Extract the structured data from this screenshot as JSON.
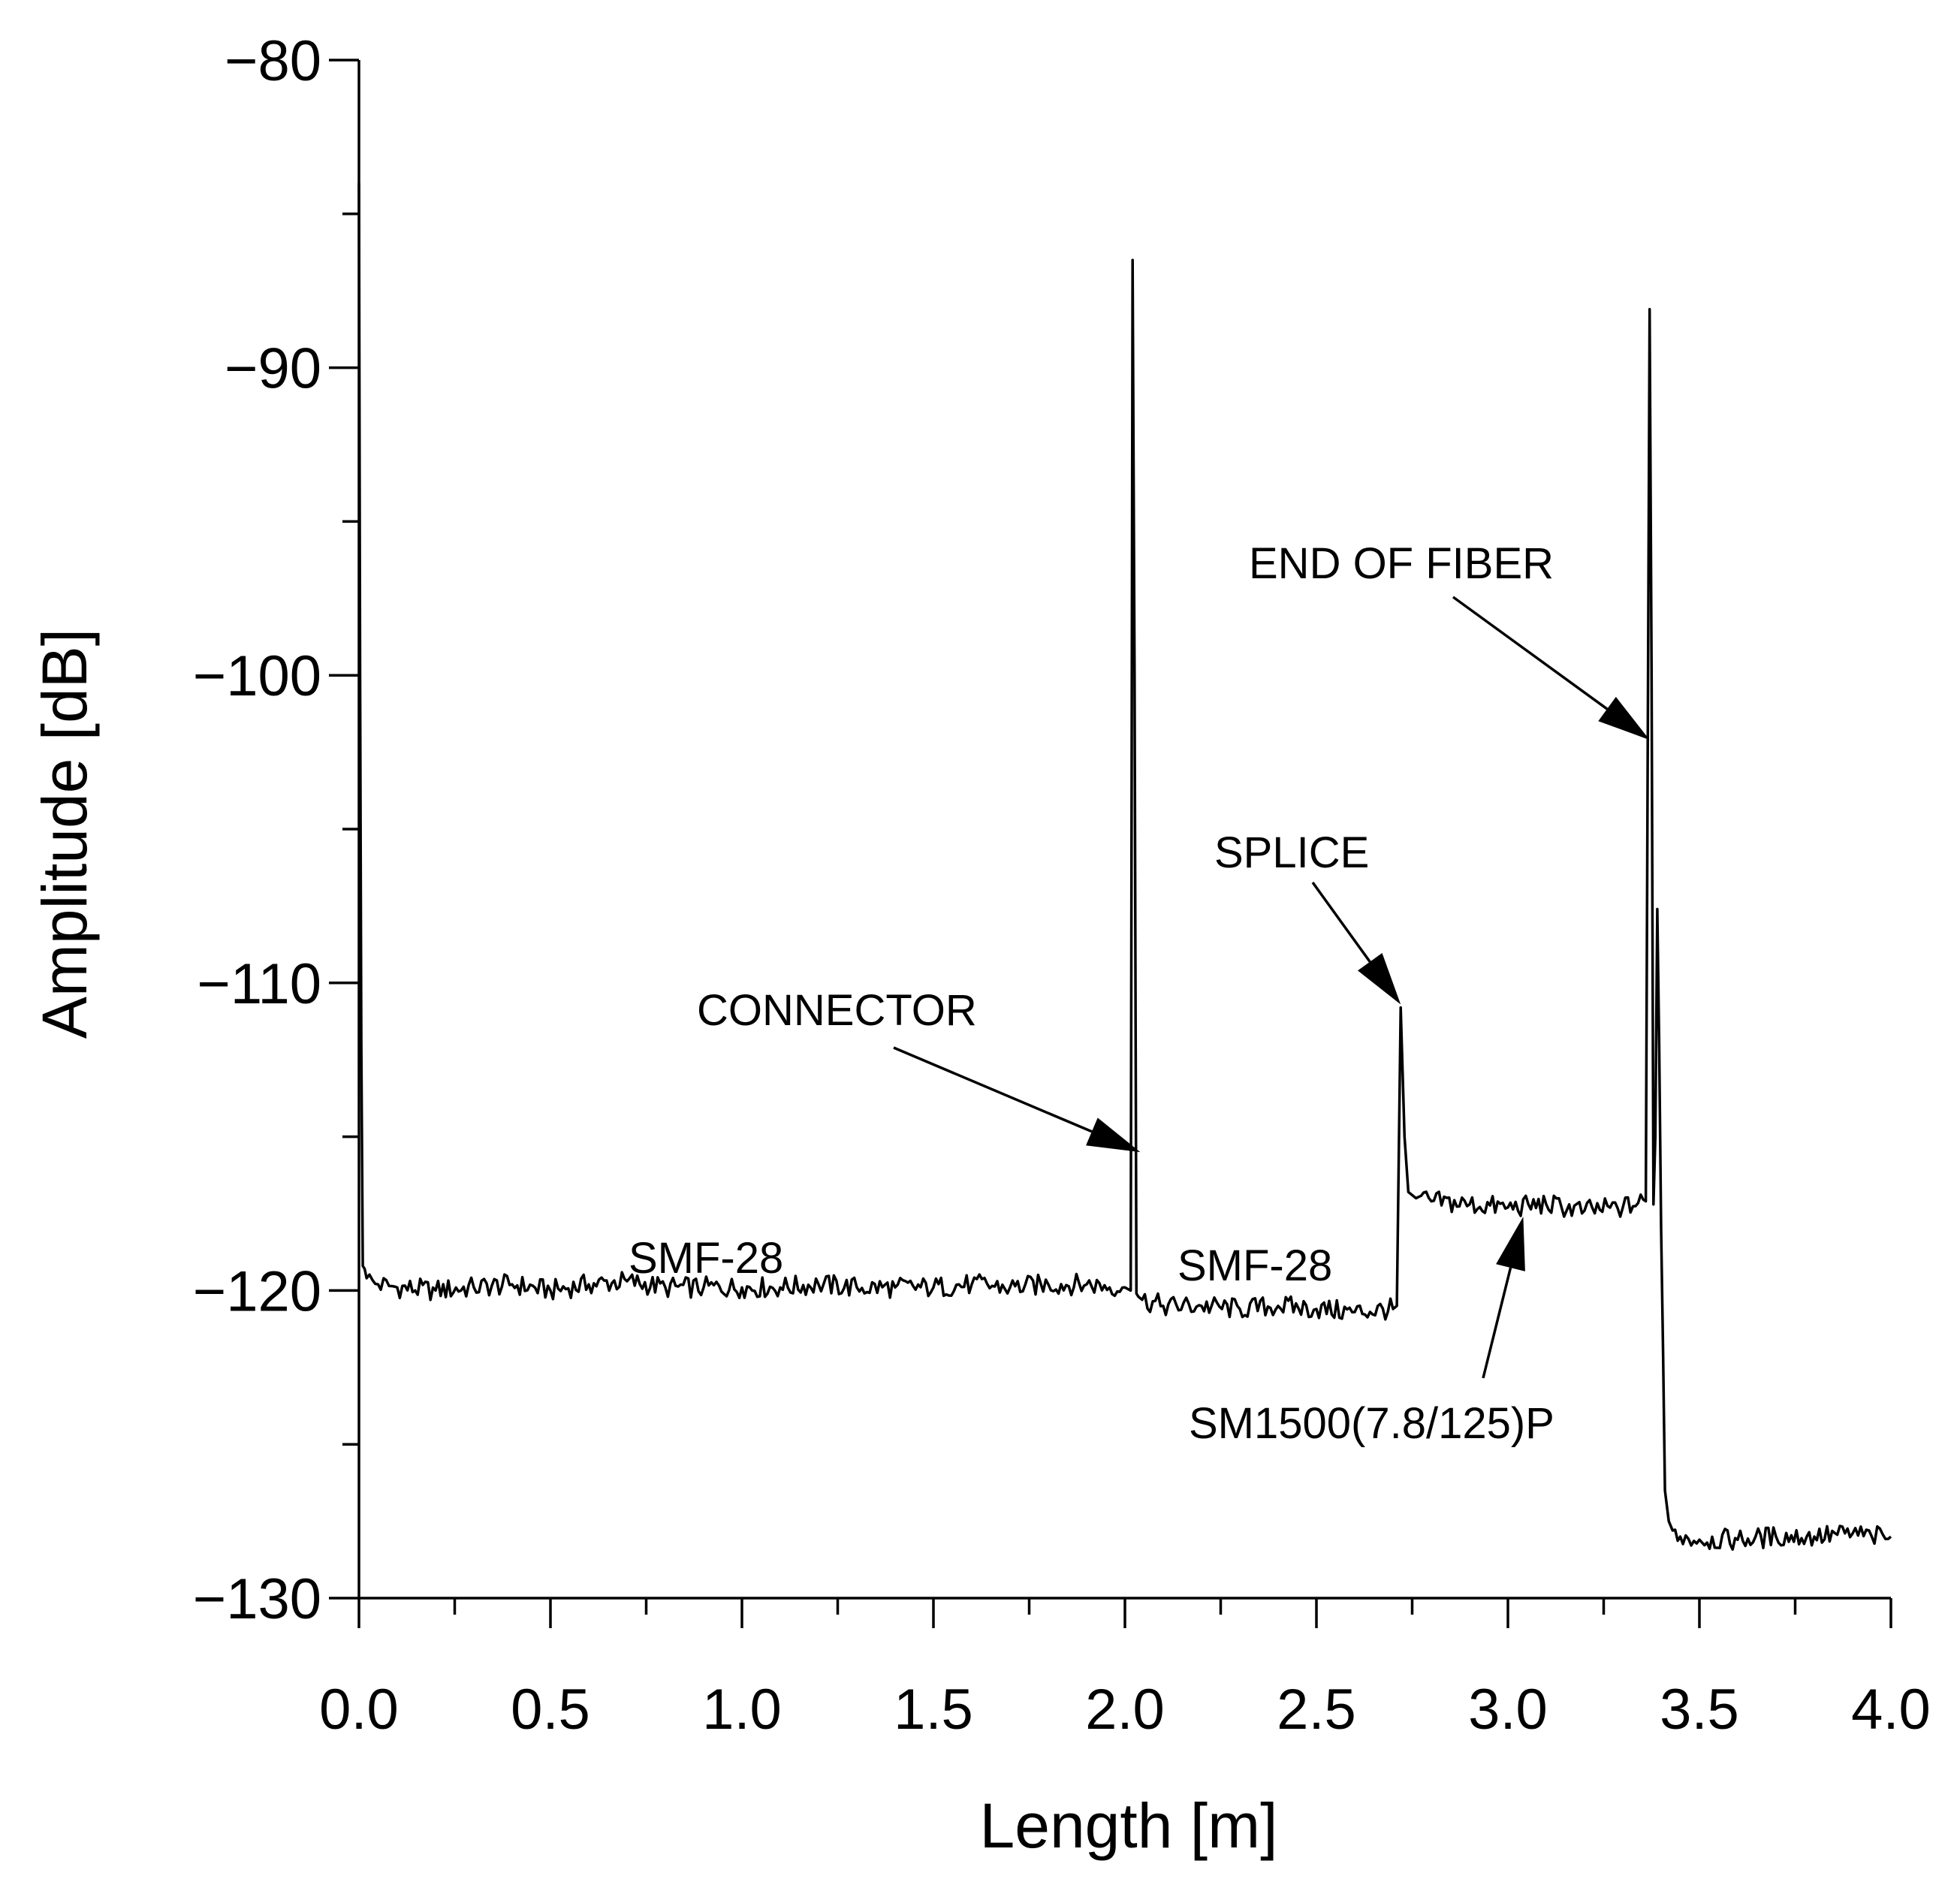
{
  "chart_data": {
    "type": "line",
    "title": "",
    "xlabel": "Length [m]",
    "ylabel": "Amplitude [dB]",
    "xlim": [
      0,
      4
    ],
    "ylim": [
      -130,
      -80
    ],
    "x_ticks": [
      "0.0",
      "0.5",
      "1.0",
      "1.5",
      "2.0",
      "2.5",
      "3.0",
      "3.5",
      "4.0"
    ],
    "y_ticks": [
      "−80",
      "−90",
      "−100",
      "−110",
      "−120",
      "−130"
    ],
    "grid": false,
    "legend": "none",
    "line_color": "#000000",
    "series": [
      {
        "x": [
          0.0,
          0.003,
          0.006,
          0.01,
          0.015,
          0.02,
          0.05,
          0.1,
          0.2,
          0.3,
          0.4,
          0.5,
          0.6,
          0.7,
          0.8,
          0.9,
          1.0,
          1.1,
          1.2,
          1.3,
          1.4,
          1.5,
          1.6,
          1.7,
          1.8,
          1.9,
          2.0,
          2.015,
          2.02,
          2.025,
          2.03,
          2.035,
          2.045,
          2.1,
          2.2,
          2.3,
          2.4,
          2.5,
          2.6,
          2.7,
          2.71,
          2.72,
          2.73,
          2.74,
          2.76,
          2.8,
          2.9,
          3.0,
          3.1,
          3.2,
          3.3,
          3.36,
          3.37,
          3.375,
          3.38,
          3.385,
          3.39,
          3.395,
          3.4,
          3.405,
          3.41,
          3.42,
          3.43,
          3.45,
          3.5,
          3.6,
          3.7,
          3.8,
          3.9,
          3.95,
          4.0
        ],
        "y": [
          -84,
          -100,
          -112,
          -119.2,
          -119.3,
          -119.6,
          -119.8,
          -119.9,
          -120.0,
          -119.9,
          -119.8,
          -120.0,
          -119.8,
          -119.7,
          -119.9,
          -119.9,
          -119.9,
          -119.9,
          -119.8,
          -119.9,
          -119.9,
          -119.9,
          -119.8,
          -119.9,
          -119.8,
          -119.8,
          -119.9,
          -120.0,
          -86.5,
          -100,
          -120.1,
          -120.2,
          -120.3,
          -120.5,
          -120.5,
          -120.6,
          -120.5,
          -120.6,
          -120.7,
          -120.6,
          -120.5,
          -110.8,
          -115.0,
          -116.8,
          -117.0,
          -117.1,
          -117.2,
          -117.3,
          -117.2,
          -117.4,
          -117.3,
          -117.1,
          -88.1,
          -100,
          -117.2,
          -115.0,
          -107.6,
          -112.0,
          -118.0,
          -122.0,
          -126.5,
          -127.5,
          -127.8,
          -128.0,
          -128.1,
          -128.1,
          -128.0,
          -128.0,
          -127.9,
          -128.0,
          -128.0
        ]
      }
    ],
    "annotations": [
      {
        "text": "CONNECTOR",
        "x": 2.04,
        "y": -115.5
      },
      {
        "text": "SPLICE",
        "x": 2.72,
        "y": -110.7
      },
      {
        "text": "END OF FIBER",
        "x": 3.37,
        "y": -102.1
      },
      {
        "text": "SM1500(7.8/125)P",
        "x": 3.04,
        "y": -117.6
      },
      {
        "text": "SMF-28",
        "x": 0.93,
        "y": -119.1
      },
      {
        "text": "SMF-28",
        "x": 2.39,
        "y": -119.1
      }
    ]
  }
}
